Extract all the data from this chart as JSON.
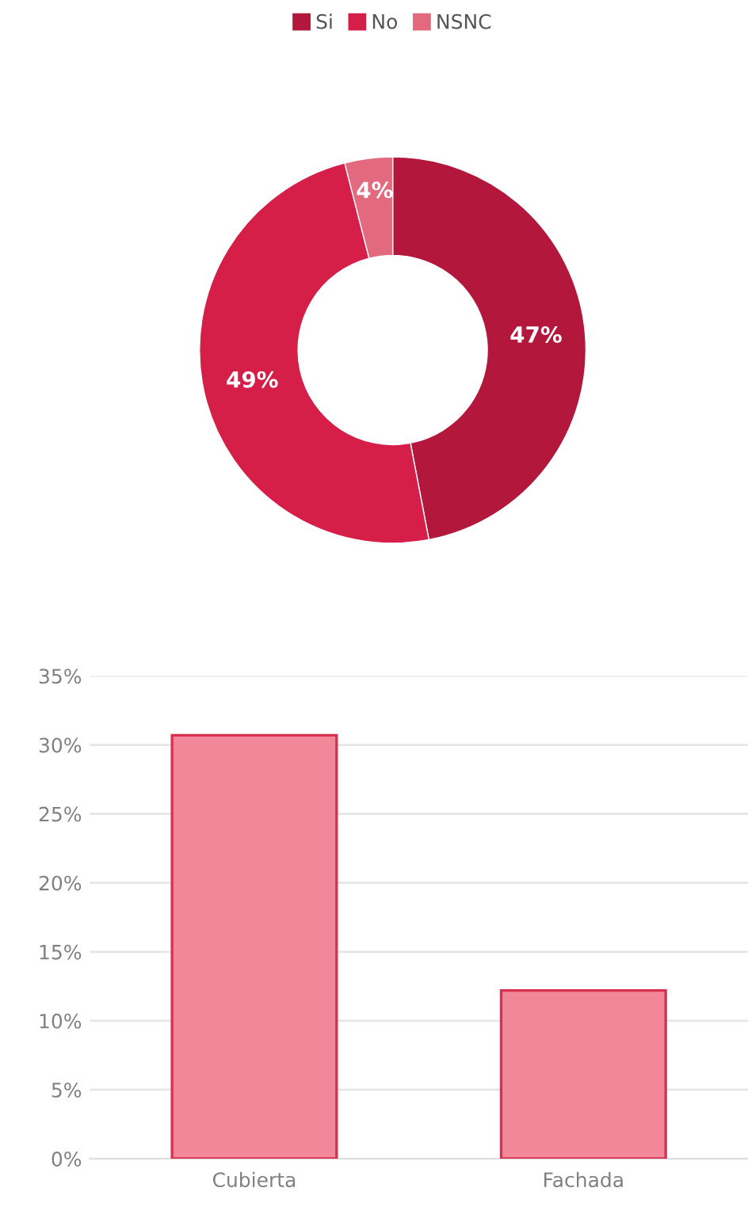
{
  "chart_data": [
    {
      "type": "donut",
      "categories": [
        "Si",
        "No",
        "NSNC"
      ],
      "values": [
        47,
        49,
        4
      ],
      "colors": [
        "#b3173c",
        "#d61f48",
        "#e3697f"
      ],
      "data_labels": true,
      "value_labels": [
        "47%",
        "49%",
        "4%"
      ],
      "legend": "top"
    },
    {
      "type": "bar",
      "categories": [
        "Cubierta",
        "Fachada"
      ],
      "values": [
        30.7,
        12.2
      ],
      "color": "#f2879a",
      "ylim": [
        0,
        35
      ],
      "yticks": [
        {
          "value": 0,
          "label": "0%"
        },
        {
          "value": 5,
          "label": "5%"
        },
        {
          "value": 10,
          "label": "10%"
        },
        {
          "value": 15,
          "label": "15%"
        },
        {
          "value": 20,
          "label": "20%"
        },
        {
          "value": 25,
          "label": "25%"
        },
        {
          "value": 30,
          "label": "30%"
        },
        {
          "value": 35,
          "label": "35%"
        }
      ],
      "grid": "y"
    }
  ]
}
